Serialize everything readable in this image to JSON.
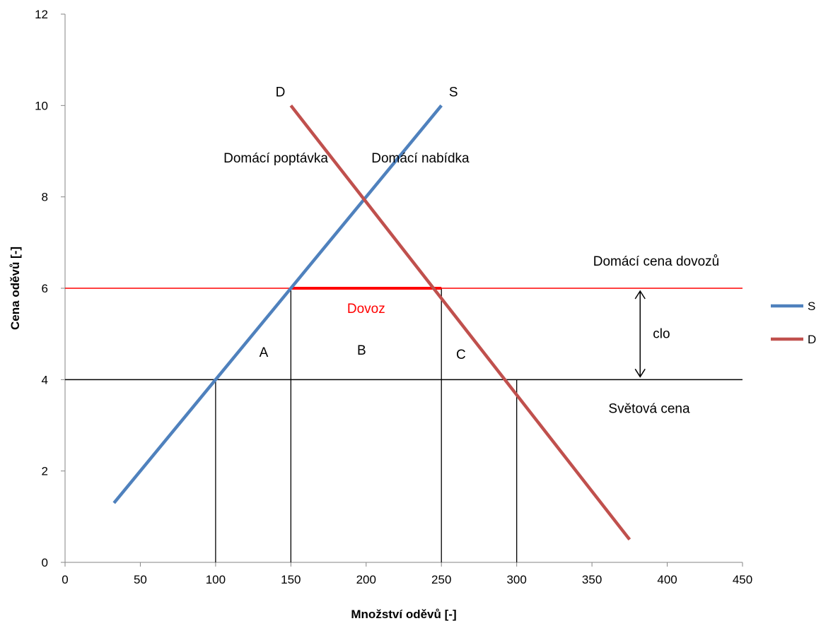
{
  "chart_data": {
    "type": "line",
    "title": "",
    "xlabel": "Množství oděvů [-]",
    "ylabel": "Cena oděvů [-]",
    "xlim": [
      0,
      450
    ],
    "ylim": [
      0,
      12
    ],
    "xticks": [
      0,
      50,
      100,
      150,
      200,
      250,
      300,
      350,
      400,
      450
    ],
    "yticks": [
      0,
      2,
      4,
      6,
      8,
      10,
      12
    ],
    "grid": false,
    "legend_position": "right",
    "series": [
      {
        "name": "S",
        "color": "#4F81BD",
        "x": [
          32.5,
          250
        ],
        "y": [
          1.3,
          10
        ]
      },
      {
        "name": "D",
        "color": "#C0504D",
        "x": [
          150,
          375
        ],
        "y": [
          10,
          0.5
        ]
      }
    ],
    "reference_lines": [
      {
        "kind": "horizontal",
        "y": 6,
        "color": "#FF0000",
        "label": "Domácí cena dovozů"
      },
      {
        "kind": "horizontal",
        "y": 4,
        "color": "#000000",
        "label": "Světová cena"
      }
    ],
    "drop_lines": [
      {
        "x": 100,
        "y": 4
      },
      {
        "x": 150,
        "y": 6
      },
      {
        "x": 250,
        "y": 6
      },
      {
        "x": 300,
        "y": 4
      }
    ],
    "highlight_segment": {
      "x": [
        150,
        250
      ],
      "y": 6,
      "color": "#FF0000",
      "label": "Dovoz"
    },
    "tariff_arrow": {
      "x": 382,
      "y": [
        4,
        6
      ],
      "label": "clo"
    },
    "annotations": [
      {
        "text": "D",
        "x": 143,
        "y": 10.2
      },
      {
        "text": "S",
        "x": 258,
        "y": 10.2
      },
      {
        "text": "Domácí poptávka",
        "x": 140,
        "y": 8.75
      },
      {
        "text": "Domácí nabídka",
        "x": 236,
        "y": 8.75
      },
      {
        "text": "A",
        "x": 132,
        "y": 4.5
      },
      {
        "text": "B",
        "x": 197,
        "y": 4.55
      },
      {
        "text": "C",
        "x": 263,
        "y": 4.45
      }
    ]
  }
}
